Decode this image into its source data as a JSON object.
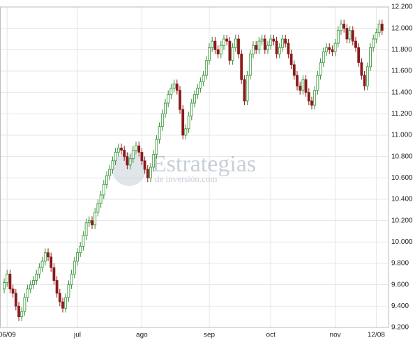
{
  "chart_data": {
    "type": "candlestick",
    "watermark": [
      "Estrategias",
      "de inversión.com"
    ],
    "categories": [
      null,
      "06/09",
      null,
      null,
      null,
      null,
      null,
      null,
      null,
      null,
      null,
      null,
      null,
      null,
      null,
      null,
      null,
      null,
      null,
      null,
      null,
      null,
      null,
      null,
      null,
      "jul",
      null,
      null,
      null,
      null,
      null,
      null,
      null,
      null,
      null,
      null,
      null,
      null,
      null,
      null,
      null,
      null,
      null,
      null,
      null,
      null,
      null,
      "ago",
      null,
      null,
      null,
      null,
      null,
      null,
      null,
      null,
      null,
      null,
      null,
      null,
      null,
      null,
      null,
      null,
      null,
      null,
      null,
      null,
      null,
      null,
      "sep",
      null,
      null,
      null,
      null,
      null,
      null,
      null,
      null,
      null,
      null,
      null,
      null,
      null,
      null,
      null,
      null,
      null,
      null,
      null,
      null,
      "oct",
      null,
      null,
      null,
      null,
      null,
      null,
      null,
      null,
      null,
      null,
      null,
      null,
      null,
      null,
      null,
      null,
      null,
      null,
      null,
      null,
      null,
      "nov",
      null,
      null,
      null,
      null,
      null,
      null,
      null,
      null,
      null,
      null,
      null,
      null,
      null,
      "12/08",
      null,
      null
    ],
    "open": [
      9560,
      9620,
      9700,
      9560,
      9520,
      9400,
      9300,
      9350,
      9480,
      9560,
      9600,
      9640,
      9700,
      9760,
      9820,
      9900,
      9860,
      9760,
      9640,
      9520,
      9440,
      9380,
      9480,
      9600,
      9700,
      9820,
      9900,
      9960,
      10060,
      10180,
      10200,
      10160,
      10280,
      10360,
      10440,
      10540,
      10620,
      10680,
      10760,
      10840,
      10880,
      10860,
      10800,
      10720,
      10780,
      10860,
      10900,
      10840,
      10760,
      10680,
      10600,
      10700,
      10820,
      10960,
      11080,
      11200,
      11300,
      11380,
      11440,
      11480,
      11420,
      11240,
      11000,
      11060,
      11180,
      11300,
      11380,
      11440,
      11500,
      11560,
      11700,
      11820,
      11880,
      11800,
      11760,
      11840,
      11900,
      11880,
      11700,
      11820,
      11900,
      11760,
      11520,
      11320,
      11560,
      11760,
      11840,
      11800,
      11880,
      11900,
      11800,
      11840,
      11900,
      11880,
      11760,
      11820,
      11900,
      11860,
      11760,
      11660,
      11560,
      11460,
      11420,
      11520,
      11400,
      11320,
      11280,
      11420,
      11560,
      11680,
      11780,
      11820,
      11800,
      11780,
      11860,
      11980,
      12040,
      12000,
      11900,
      11980,
      11880,
      11820,
      11680,
      11560,
      11460,
      11640,
      11820,
      11900,
      11960,
      12040
    ],
    "high": [
      9660,
      9740,
      9740,
      9600,
      9560,
      9440,
      9390,
      9520,
      9600,
      9640,
      9680,
      9740,
      9800,
      9860,
      9940,
      9940,
      9900,
      9800,
      9680,
      9560,
      9480,
      9520,
      9640,
      9740,
      9860,
      9940,
      10000,
      10100,
      10220,
      10240,
      10240,
      10320,
      10400,
      10480,
      10580,
      10660,
      10720,
      10800,
      10880,
      10920,
      10920,
      10900,
      10840,
      10820,
      10900,
      10940,
      10940,
      10880,
      10800,
      10720,
      10740,
      10860,
      11000,
      11120,
      11240,
      11340,
      11420,
      11480,
      11520,
      11520,
      11460,
      11280,
      11100,
      11220,
      11340,
      11420,
      11480,
      11540,
      11600,
      11740,
      11860,
      11920,
      11920,
      11840,
      11880,
      11940,
      11940,
      11920,
      11860,
      11940,
      11940,
      11800,
      11560,
      11600,
      11800,
      11880,
      11880,
      11920,
      11940,
      11940,
      11880,
      11940,
      11940,
      11920,
      11860,
      11940,
      11940,
      11900,
      11800,
      11700,
      11600,
      11500,
      11560,
      11560,
      11440,
      11360,
      11460,
      11600,
      11720,
      11820,
      11860,
      11860,
      11840,
      11900,
      12020,
      12080,
      12080,
      12040,
      12020,
      12020,
      11920,
      11860,
      11720,
      11600,
      11680,
      11860,
      11940,
      12000,
      12080,
      12080
    ],
    "low": [
      9520,
      9580,
      9520,
      9480,
      9360,
      9260,
      9260,
      9310,
      9440,
      9520,
      9560,
      9600,
      9660,
      9720,
      9780,
      9820,
      9720,
      9600,
      9480,
      9400,
      9340,
      9340,
      9440,
      9560,
      9660,
      9780,
      9860,
      9920,
      10020,
      10140,
      10120,
      10120,
      10240,
      10320,
      10400,
      10500,
      10580,
      10640,
      10720,
      10800,
      10820,
      10760,
      10680,
      10680,
      10740,
      10820,
      10800,
      10720,
      10640,
      10560,
      10560,
      10660,
      10780,
      10920,
      11040,
      11160,
      11260,
      11340,
      11400,
      11380,
      11200,
      10960,
      10960,
      11020,
      11140,
      11260,
      11340,
      11400,
      11460,
      11520,
      11660,
      11780,
      11760,
      11720,
      11720,
      11800,
      11840,
      11660,
      11660,
      11780,
      11720,
      11480,
      11280,
      11280,
      11520,
      11720,
      11760,
      11760,
      11840,
      11760,
      11760,
      11800,
      11840,
      11720,
      11720,
      11780,
      11820,
      11720,
      11620,
      11520,
      11420,
      11380,
      11380,
      11360,
      11280,
      11240,
      11240,
      11380,
      11520,
      11640,
      11740,
      11760,
      11740,
      11740,
      11820,
      11940,
      11960,
      11860,
      11860,
      11840,
      11780,
      11640,
      11520,
      11420,
      11420,
      11600,
      11780,
      11860,
      11920,
      11940
    ],
    "close": [
      9620,
      9700,
      9560,
      9520,
      9400,
      9300,
      9350,
      9480,
      9560,
      9600,
      9640,
      9700,
      9760,
      9820,
      9900,
      9860,
      9760,
      9640,
      9520,
      9440,
      9380,
      9480,
      9600,
      9700,
      9820,
      9900,
      9960,
      10060,
      10180,
      10200,
      10160,
      10280,
      10360,
      10440,
      10540,
      10620,
      10680,
      10760,
      10840,
      10880,
      10860,
      10800,
      10720,
      10780,
      10860,
      10900,
      10840,
      10760,
      10680,
      10600,
      10700,
      10820,
      10960,
      11080,
      11200,
      11300,
      11380,
      11440,
      11480,
      11420,
      11240,
      11000,
      11060,
      11180,
      11300,
      11380,
      11440,
      11500,
      11560,
      11700,
      11820,
      11880,
      11800,
      11760,
      11840,
      11900,
      11880,
      11700,
      11820,
      11900,
      11760,
      11520,
      11320,
      11560,
      11760,
      11840,
      11800,
      11880,
      11900,
      11800,
      11840,
      11900,
      11880,
      11760,
      11820,
      11900,
      11860,
      11760,
      11660,
      11560,
      11460,
      11420,
      11520,
      11400,
      11320,
      11280,
      11420,
      11560,
      11680,
      11780,
      11820,
      11800,
      11780,
      11860,
      11980,
      12040,
      12000,
      11900,
      11980,
      11880,
      11820,
      11680,
      11560,
      11460,
      11640,
      11820,
      11900,
      11960,
      12040,
      11980
    ],
    "up_color": "#2f8f2f",
    "down_color": "#8b1a1a",
    "ylim": [
      9200,
      12200
    ],
    "yticks": [
      {
        "value": 9200,
        "label": "9.200"
      },
      {
        "value": 9400,
        "label": "9.400"
      },
      {
        "value": 9600,
        "label": "9.600"
      },
      {
        "value": 9800,
        "label": "9.800"
      },
      {
        "value": 10000,
        "label": "10.000"
      },
      {
        "value": 10200,
        "label": "10.200"
      },
      {
        "value": 10400,
        "label": "10.400"
      },
      {
        "value": 10600,
        "label": "10.600"
      },
      {
        "value": 10800,
        "label": "10.800"
      },
      {
        "value": 11000,
        "label": "11.000"
      },
      {
        "value": 11200,
        "label": "11.200"
      },
      {
        "value": 11400,
        "label": "11.400"
      },
      {
        "value": 11600,
        "label": "11.600"
      },
      {
        "value": 11800,
        "label": "11.800"
      },
      {
        "value": 12000,
        "label": "12.000"
      },
      {
        "value": 12200,
        "label": "12.200"
      }
    ],
    "grid": true
  }
}
